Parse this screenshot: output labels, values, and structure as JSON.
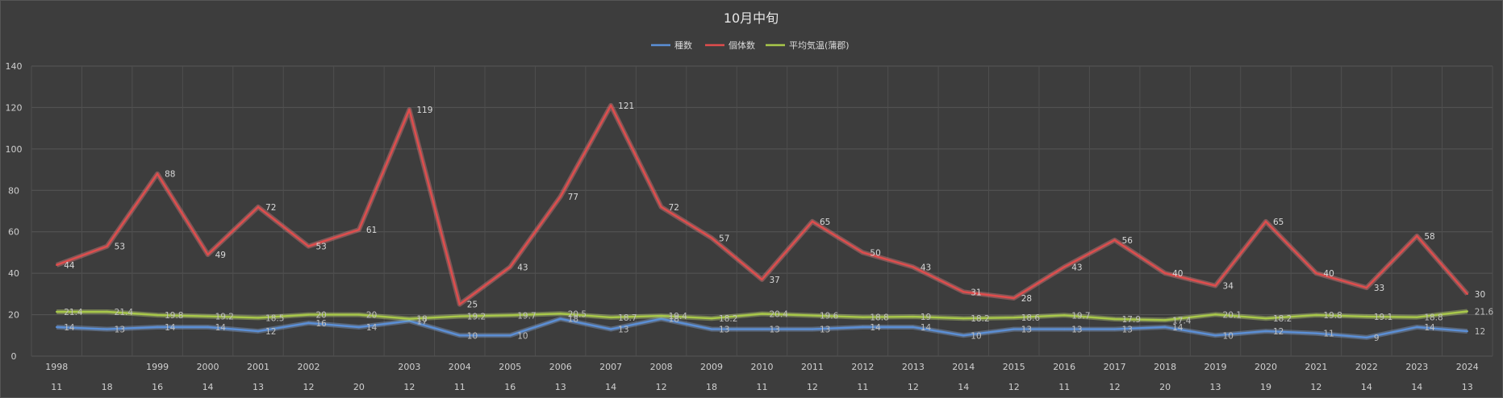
{
  "chart_data": {
    "type": "line",
    "title": "10月中旬",
    "legend_position": "top",
    "grid": true,
    "ylim": [
      0,
      140
    ],
    "yticks": [
      "0",
      "20",
      "40",
      "60",
      "80",
      "100",
      "120",
      "140"
    ],
    "categories": [
      {
        "year": "1998",
        "sub": "11"
      },
      {
        "year": "",
        "sub": "18"
      },
      {
        "year": "1999",
        "sub": "16"
      },
      {
        "year": "2000",
        "sub": "14"
      },
      {
        "year": "2001",
        "sub": "13"
      },
      {
        "year": "2002",
        "sub": "12"
      },
      {
        "year": "",
        "sub": "20"
      },
      {
        "year": "2003",
        "sub": "12"
      },
      {
        "year": "2004",
        "sub": "11"
      },
      {
        "year": "2005",
        "sub": "16"
      },
      {
        "year": "2006",
        "sub": "13"
      },
      {
        "year": "2007",
        "sub": "14"
      },
      {
        "year": "2008",
        "sub": "12"
      },
      {
        "year": "2009",
        "sub": "18"
      },
      {
        "year": "2010",
        "sub": "11"
      },
      {
        "year": "2011",
        "sub": "12"
      },
      {
        "year": "2012",
        "sub": "11"
      },
      {
        "year": "2013",
        "sub": "12"
      },
      {
        "year": "2014",
        "sub": "14"
      },
      {
        "year": "2015",
        "sub": "12"
      },
      {
        "year": "2016",
        "sub": "11"
      },
      {
        "year": "2017",
        "sub": "12"
      },
      {
        "year": "2018",
        "sub": "20"
      },
      {
        "year": "2019",
        "sub": "13"
      },
      {
        "year": "2020",
        "sub": "19"
      },
      {
        "year": "2021",
        "sub": "12"
      },
      {
        "year": "2022",
        "sub": "14"
      },
      {
        "year": "2023",
        "sub": "14"
      },
      {
        "year": "2024",
        "sub": "13"
      }
    ],
    "series": [
      {
        "name": "種数",
        "color": "#5b8fd6",
        "glow": "#8fb4ec",
        "label_color": "#bfbfbf",
        "label_pos": "right",
        "values": [
          14,
          13,
          14,
          14,
          12,
          16,
          14,
          17,
          10,
          10,
          18,
          13,
          18,
          13,
          13,
          13,
          14,
          14,
          10,
          13,
          13,
          13,
          14,
          10,
          12,
          11,
          9,
          14,
          12
        ]
      },
      {
        "name": "個体数",
        "color": "#e04d4d",
        "glow": "#ff8a8a",
        "label_color": "#d9d9d9",
        "label_pos": "right",
        "values": [
          44,
          53,
          88,
          49,
          72,
          53,
          61,
          119,
          25,
          43,
          77,
          121,
          72,
          57,
          37,
          65,
          50,
          43,
          31,
          28,
          43,
          56,
          40,
          34,
          65,
          40,
          33,
          58,
          30
        ]
      },
      {
        "name": "平均気温(蒲郡)",
        "color": "#a8c84a",
        "glow": "#d2ec7a",
        "label_color": "#bfbfbf",
        "label_pos": "right",
        "values": [
          "21.4",
          "21.4",
          "19.8",
          "19.2",
          "18.5",
          "20",
          "20",
          "18",
          "19.2",
          "19.7",
          "20.5",
          "18.7",
          "19.4",
          "18.2",
          "20.4",
          "19.6",
          "18.8",
          "19",
          "18.2",
          "18.6",
          "19.7",
          "17.9",
          "17.4",
          "20.1",
          "18.2",
          "19.8",
          "19.1",
          "18.8",
          "21.6"
        ]
      }
    ]
  }
}
